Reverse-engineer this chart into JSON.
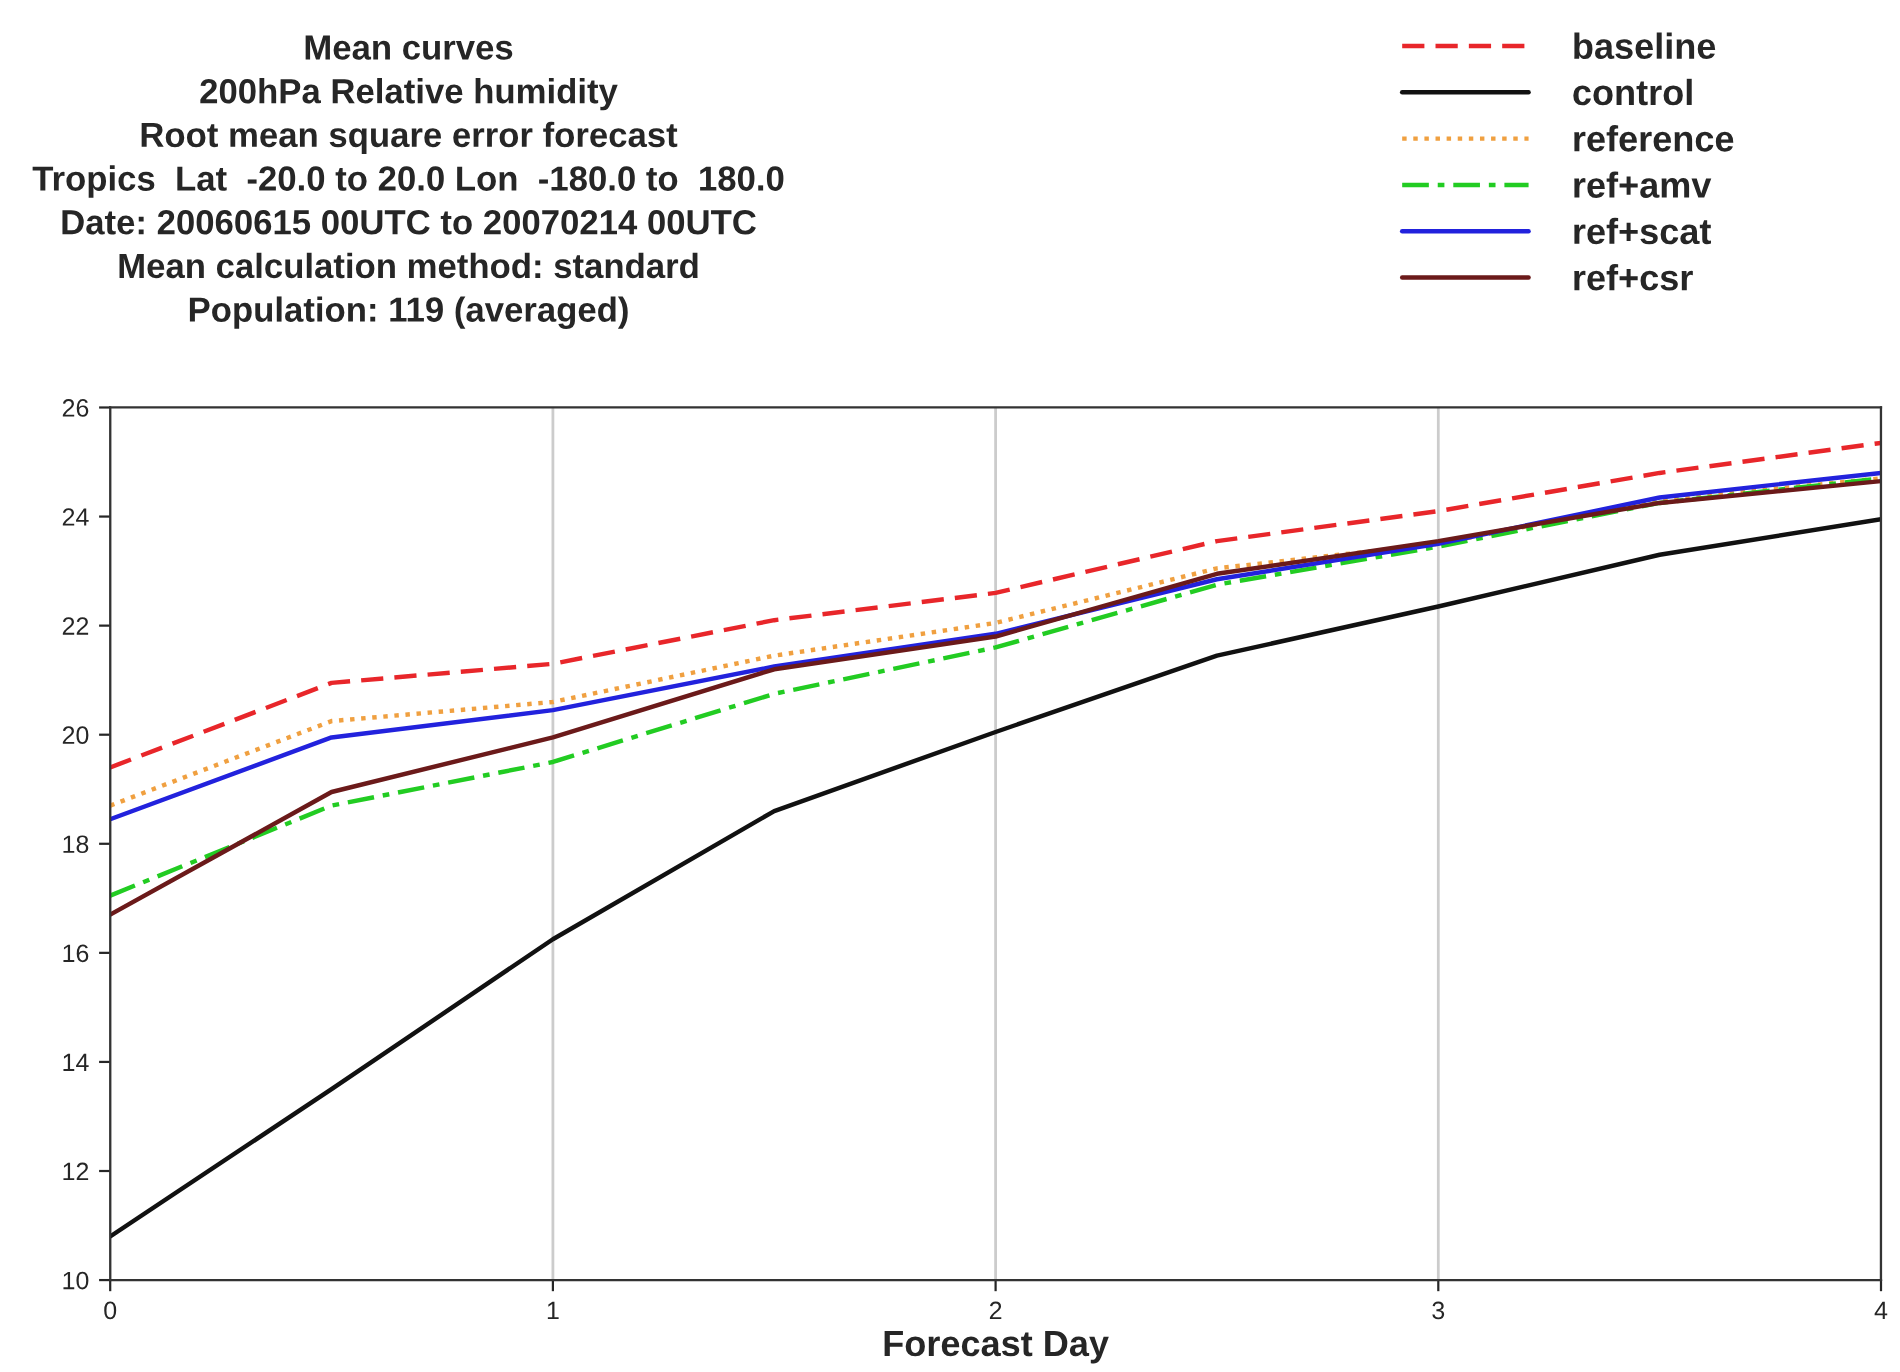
{
  "chart_data": {
    "type": "line",
    "title": "Mean curves\n200hPa Relative humidity\nRoot mean square error forecast\nTropics  Lat  -20.0 to 20.0 Lon  -180.0 to  180.0\nDate: 20060615 00UTC to 20070214 00UTC\nMean calculation method: standard\nPopulation: 119 (averaged)",
    "xlabel": "Forecast Day",
    "x": [
      0,
      0.5,
      1,
      1.5,
      2,
      2.5,
      3,
      3.5,
      4
    ],
    "series": [
      {
        "name": "baseline",
        "color": "#e8262a",
        "line_style": "dashed",
        "values": [
          19.4,
          20.95,
          21.3,
          22.1,
          22.6,
          23.55,
          24.1,
          24.8,
          25.35
        ]
      },
      {
        "name": "control",
        "color": "#111111",
        "line_style": "solid",
        "values": [
          10.8,
          13.5,
          16.25,
          18.6,
          20.05,
          21.45,
          22.35,
          23.3,
          23.95
        ]
      },
      {
        "name": "reference",
        "color": "#f0a040",
        "line_style": "dotted",
        "values": [
          18.7,
          20.25,
          20.6,
          21.45,
          22.05,
          23.05,
          23.5,
          24.3,
          24.7
        ]
      },
      {
        "name": "ref+amv",
        "color": "#22cc22",
        "line_style": "dashdot",
        "values": [
          17.05,
          18.7,
          19.5,
          20.75,
          21.6,
          22.75,
          23.45,
          24.25,
          24.7
        ]
      },
      {
        "name": "ref+scat",
        "color": "#2222dd",
        "line_style": "solid",
        "values": [
          18.45,
          19.95,
          20.45,
          21.25,
          21.85,
          22.85,
          23.5,
          24.35,
          24.8
        ]
      },
      {
        "name": "ref+csr",
        "color": "#6b1a1a",
        "line_style": "solid",
        "values": [
          16.7,
          18.95,
          19.95,
          21.2,
          21.8,
          22.95,
          23.55,
          24.25,
          24.65
        ]
      }
    ],
    "xlim": [
      0,
      4
    ],
    "xticks": [
      0,
      1,
      2,
      3,
      4
    ],
    "ylim": [
      10,
      26
    ],
    "yticks": [
      10,
      12,
      14,
      16,
      18,
      20,
      22,
      24,
      26
    ],
    "grid": "x",
    "legend": "top right",
    "marker": "none"
  }
}
